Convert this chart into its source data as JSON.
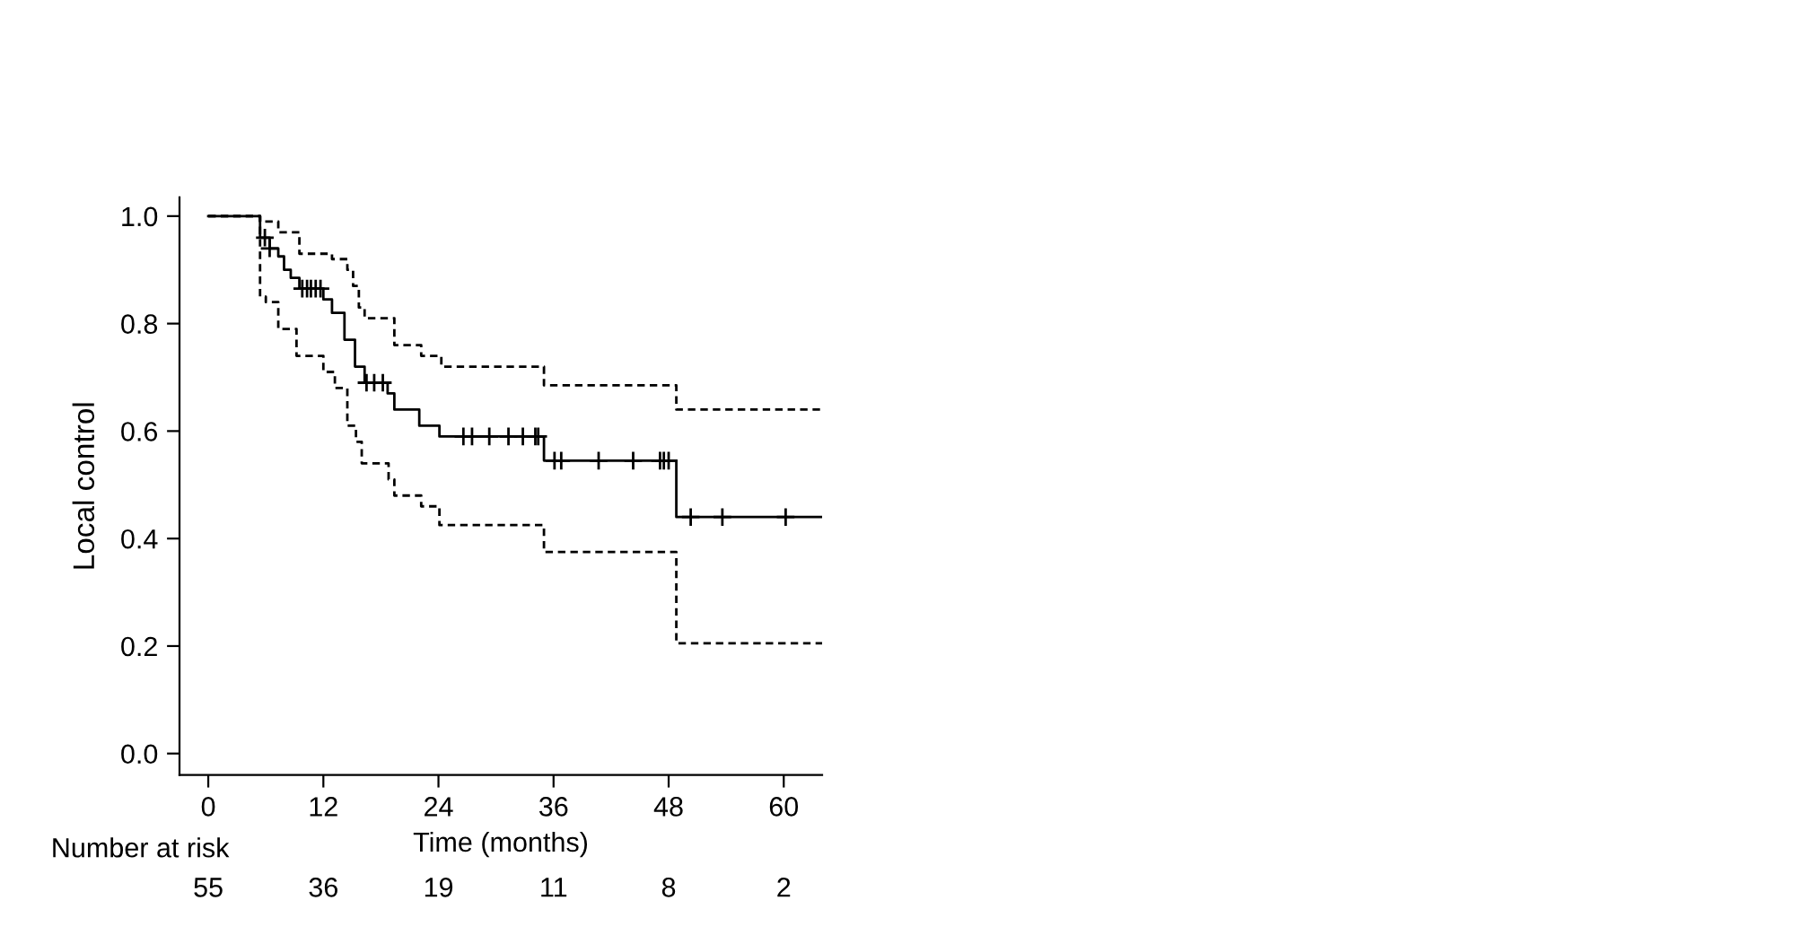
{
  "chart_data": {
    "type": "step",
    "ylabel": "Local control",
    "xlabel": "Time (months)",
    "xlim": [
      -3,
      64
    ],
    "xticks": [
      0,
      12,
      24,
      36,
      48,
      60
    ],
    "ylim": [
      -0.04,
      1.035
    ],
    "yticks": [
      {
        "value": 0,
        "label": "0.0"
      },
      {
        "value": 0.2,
        "label": "0.2"
      },
      {
        "value": 0.4,
        "label": "0.4"
      },
      {
        "value": 0.6,
        "label": "0.6"
      },
      {
        "value": 0.8,
        "label": "0.8"
      },
      {
        "value": 1,
        "label": "1.0"
      }
    ],
    "grid": false,
    "legend": false,
    "series": [
      {
        "color": "#000000",
        "line_style": "solid",
        "x": [
          0,
          5.4,
          6.4,
          7.3,
          7.9,
          8.6,
          9.5,
          12.0,
          12.9,
          14.2,
          15.3,
          16.3,
          18.7,
          19.4,
          22.0,
          24.1,
          35.0,
          48.8,
          64
        ],
        "values": [
          1.0,
          0.96,
          0.94,
          0.925,
          0.9,
          0.885,
          0.865,
          0.845,
          0.82,
          0.77,
          0.72,
          0.69,
          0.67,
          0.64,
          0.61,
          0.59,
          0.545,
          0.44,
          0.44
        ]
      },
      {
        "type": "scatter",
        "color": "#000000",
        "marker": "cross",
        "x": [
          5.9,
          6.4,
          9.8,
          10.3,
          10.7,
          11.2,
          11.7,
          16.5,
          17.3,
          18.2,
          26.6,
          27.5,
          29.3,
          31.3,
          32.8,
          34.1,
          34.4,
          36.1,
          36.8,
          40.7,
          44.3,
          47.1,
          47.5,
          48.0,
          50.3,
          53.6,
          60.2
        ],
        "values": [
          0.96,
          0.94,
          0.865,
          0.865,
          0.865,
          0.865,
          0.865,
          0.69,
          0.69,
          0.69,
          0.59,
          0.59,
          0.59,
          0.59,
          0.59,
          0.59,
          0.59,
          0.545,
          0.545,
          0.545,
          0.545,
          0.545,
          0.545,
          0.545,
          0.44,
          0.44,
          0.44
        ]
      },
      {
        "color": "#000000",
        "line_style": "dashed",
        "x": [
          0,
          5.4,
          7.3,
          9.5,
          12.9,
          14.5,
          15.1,
          15.7,
          16.3,
          19.4,
          22.2,
          24.3,
          35.0,
          48.8,
          64
        ],
        "values": [
          1.0,
          0.99,
          0.97,
          0.93,
          0.92,
          0.9,
          0.87,
          0.83,
          0.81,
          0.76,
          0.74,
          0.72,
          0.685,
          0.64,
          0.64
        ]
      },
      {
        "color": "#000000",
        "line_style": "dashed",
        "x": [
          0,
          5.4,
          6.0,
          7.3,
          9.2,
          12.0,
          13.2,
          14.5,
          15.4,
          16.0,
          18.8,
          19.4,
          22.2,
          24.1,
          35.0,
          48.8,
          64
        ],
        "values": [
          1.0,
          0.85,
          0.84,
          0.79,
          0.74,
          0.71,
          0.68,
          0.61,
          0.58,
          0.54,
          0.51,
          0.48,
          0.46,
          0.425,
          0.375,
          0.205,
          0.205
        ]
      }
    ],
    "annotations": [
      "Number at risk",
      "55",
      "36",
      "19",
      "11",
      "8",
      "2"
    ]
  }
}
